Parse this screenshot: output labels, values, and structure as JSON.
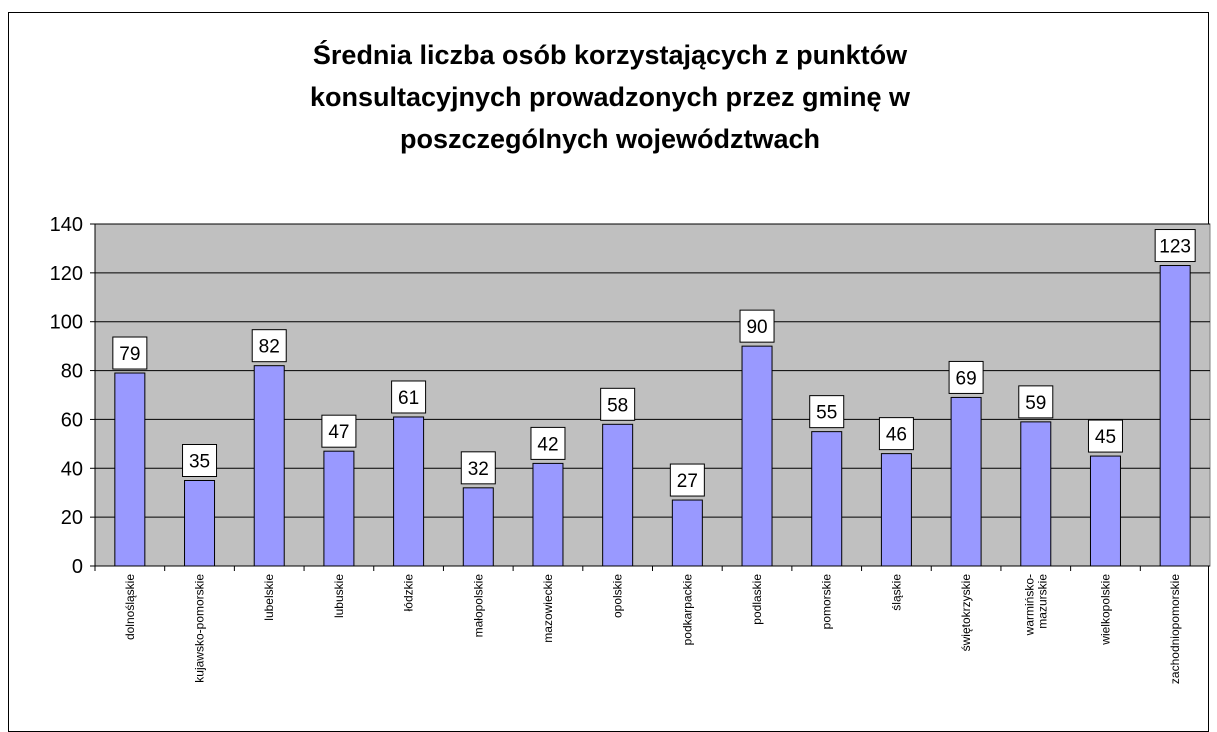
{
  "chart_data": {
    "type": "bar",
    "title": "Średnia liczba osób korzystających z punktów konsultacyjnych prowadzonych przez gminę w poszczególnych województwach",
    "categories": [
      "dolnośląskie",
      "kujawsko-pomorskie",
      "lubelskie",
      "lubuskie",
      "łódzkie",
      "małopolskie",
      "mazowieckie",
      "opolskie",
      "podkarpackie",
      "podlaskie",
      "pomorskie",
      "śląskie",
      "świętokrzyskie",
      "warmińsko-\nmazurskie",
      "wielkopolskie",
      "zachodniopomorskie"
    ],
    "values": [
      79,
      35,
      82,
      47,
      61,
      32,
      42,
      58,
      27,
      90,
      55,
      46,
      69,
      59,
      45,
      123
    ],
    "color": "#9999ff",
    "ylim": [
      0,
      140
    ],
    "yticks": [
      0,
      20,
      40,
      60,
      80,
      100,
      120,
      140
    ],
    "grid": true
  }
}
